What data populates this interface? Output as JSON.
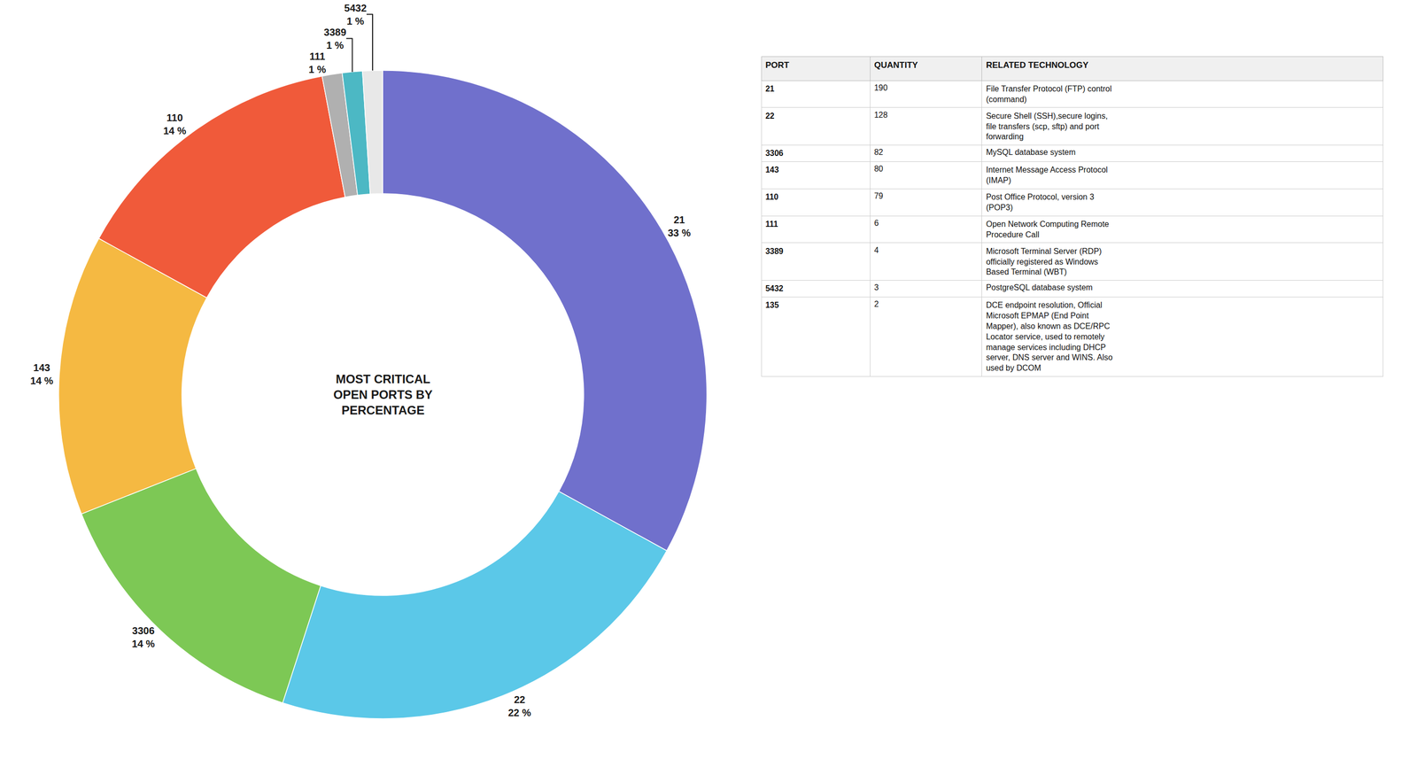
{
  "chart_data": [
    {
      "type": "pie",
      "title": "MOST CRITICAL\nOPEN PORTS BY\nPERCENTAGE",
      "categories": [
        "21",
        "22",
        "3306",
        "143",
        "110",
        "111",
        "3389",
        "5432"
      ],
      "values": [
        33,
        22,
        14,
        14,
        14,
        1,
        1,
        1
      ],
      "value_labels": [
        "33 %",
        "22 %",
        "14 %",
        "14 %",
        "14 %",
        "1 %",
        "1 %",
        "1 %"
      ],
      "colors": [
        "#7070cc",
        "#5bc8e8",
        "#7dc855",
        "#f5b942",
        "#f05a3a",
        "#b0b0b0",
        "#4cb8c4",
        "#e8e8e8"
      ],
      "data_labels": true
    },
    {
      "type": "table",
      "headers": [
        "PORT",
        "QUANTITY",
        "RELATED TECHNOLOGY"
      ],
      "rows": [
        [
          "21",
          "190",
          "File Transfer Protocol (FTP) control\n(command)"
        ],
        [
          "22",
          "128",
          "Secure Shell (SSH),secure logins,\nfile transfers (scp, sftp) and port\nforwarding"
        ],
        [
          "3306",
          "82",
          "MySQL database system"
        ],
        [
          "143",
          "80",
          "Internet Message Access Protocol\n(IMAP)"
        ],
        [
          "110",
          "79",
          "Post Office Protocol, version 3\n(POP3)"
        ],
        [
          "111",
          "6",
          "Open Network Computing Remote\nProcedure Call"
        ],
        [
          "3389",
          "4",
          "Microsoft Terminal Server (RDP)\nofficially registered as Windows\nBased Terminal (WBT)"
        ],
        [
          "5432",
          "3",
          "PostgreSQL database system"
        ],
        [
          "135",
          "2",
          "DCE endpoint resolution, Official\nMicrosoft EPMAP (End Point\nMapper), also known as DCE/RPC\nLocator service, used to remotely\nmanage services including DHCP\nserver, DNS server and WINS. Also\nused by DCOM"
        ]
      ]
    }
  ]
}
